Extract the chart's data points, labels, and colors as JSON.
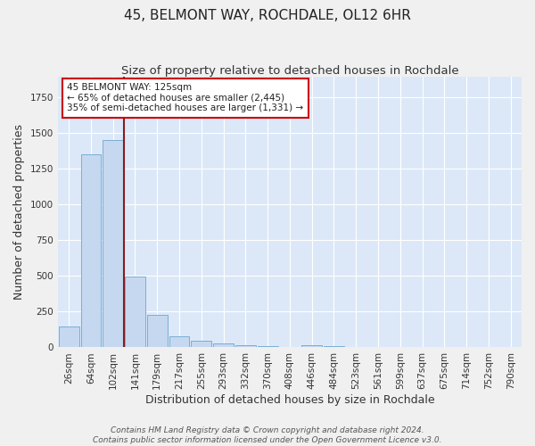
{
  "title": "45, BELMONT WAY, ROCHDALE, OL12 6HR",
  "subtitle": "Size of property relative to detached houses in Rochdale",
  "xlabel": "Distribution of detached houses by size in Rochdale",
  "ylabel": "Number of detached properties",
  "footer_line1": "Contains HM Land Registry data © Crown copyright and database right 2024.",
  "footer_line2": "Contains public sector information licensed under the Open Government Licence v3.0.",
  "categories": [
    "26sqm",
    "64sqm",
    "102sqm",
    "141sqm",
    "179sqm",
    "217sqm",
    "255sqm",
    "293sqm",
    "332sqm",
    "370sqm",
    "408sqm",
    "446sqm",
    "484sqm",
    "523sqm",
    "561sqm",
    "599sqm",
    "637sqm",
    "675sqm",
    "714sqm",
    "752sqm",
    "790sqm"
  ],
  "values": [
    145,
    1350,
    1450,
    495,
    225,
    80,
    48,
    30,
    18,
    8,
    5,
    15,
    12,
    0,
    0,
    0,
    0,
    0,
    0,
    0,
    0
  ],
  "bar_color": "#c5d8f0",
  "bar_edge_color": "#7aaed4",
  "vline_x": 2.5,
  "vline_color": "#8b1a1a",
  "annotation_line1": "45 BELMONT WAY: 125sqm",
  "annotation_line2": "← 65% of detached houses are smaller (2,445)",
  "annotation_line3": "35% of semi-detached houses are larger (1,331) →",
  "annotation_box_color": "#ffffff",
  "annotation_box_edge_color": "#cc0000",
  "ylim": [
    0,
    1900
  ],
  "background_color": "#dce8f8",
  "grid_color": "#ffffff",
  "title_fontsize": 11,
  "subtitle_fontsize": 9.5,
  "label_fontsize": 9,
  "tick_fontsize": 7.5,
  "footer_fontsize": 6.5,
  "fig_bg": "#f0f0f0"
}
